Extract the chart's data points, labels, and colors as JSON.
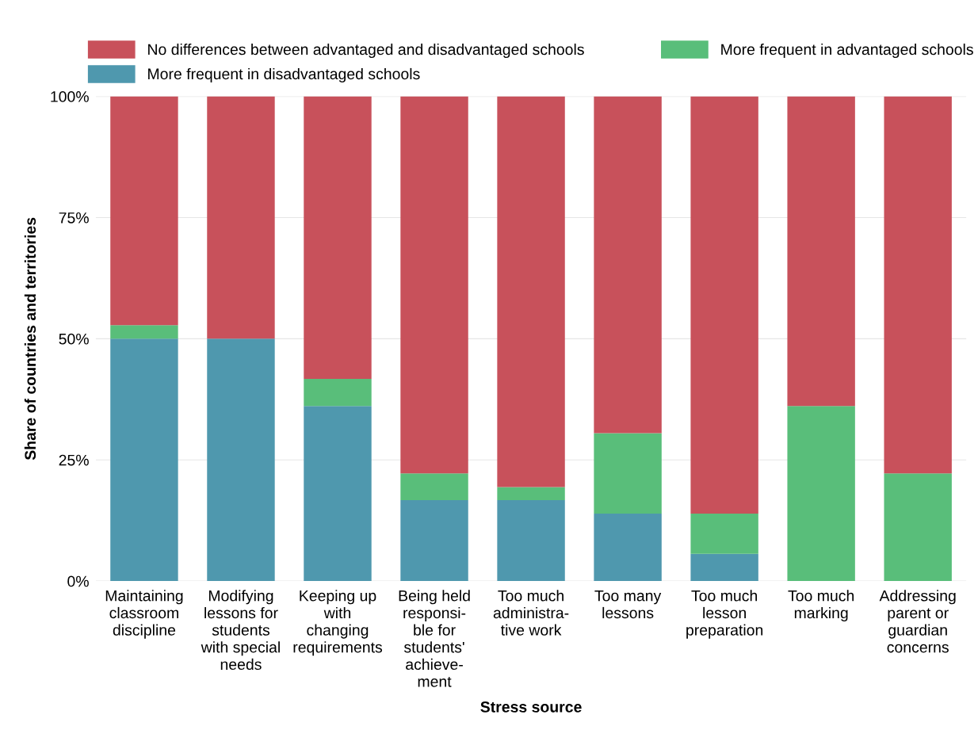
{
  "chart_data": {
    "type": "bar",
    "stacked": true,
    "xlabel": "Stress source",
    "ylabel": "Share of countries and territories",
    "categories": [
      "Maintaining\nclassroom\ndiscipline",
      "Modifying\nlessons for\nstudents\nwith special\nneeds",
      "Keeping up\nwith\nchanging\nrequirements",
      "Being held\nresponsi-\nble for\nstudents'\nachieve-\nment",
      "Too much\nadministra-\ntive work",
      "Too many\nlessons",
      "Too much\nlesson\npreparation",
      "Too much\nmarking",
      "Addressing\nparent or\nguardian\nconcerns"
    ],
    "series": [
      {
        "name": "More frequent in disadvantaged schools",
        "color": "#4f98ae",
        "values": [
          50,
          50,
          36.1,
          16.7,
          16.7,
          13.9,
          5.6,
          0,
          0
        ]
      },
      {
        "name": "More frequent in advantaged schools",
        "color": "#59be7a",
        "values": [
          2.8,
          0,
          5.6,
          5.5,
          2.7,
          16.6,
          8.3,
          36.1,
          22.2
        ]
      },
      {
        "name": "No differences between advantaged and disadvantaged schools",
        "color": "#c8515b",
        "values": [
          47.2,
          50,
          58.3,
          77.8,
          80.6,
          69.5,
          86.1,
          63.9,
          77.8
        ]
      }
    ],
    "ylim": [
      0,
      100
    ],
    "yticks": [
      {
        "value": 0,
        "label": "0%"
      },
      {
        "value": 25,
        "label": "25%"
      },
      {
        "value": 50,
        "label": "50%"
      },
      {
        "value": 75,
        "label": "75%"
      },
      {
        "value": 100,
        "label": "100%"
      }
    ],
    "grid": "y",
    "legend": "top"
  }
}
